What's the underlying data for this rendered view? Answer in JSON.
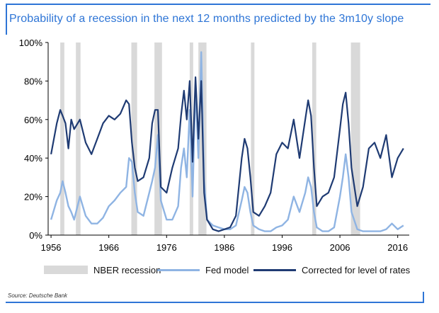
{
  "title": "Probability of a recession in the next 12 months predicted by the 3m10y slope",
  "source": "Source: Deutsche Bank",
  "colors": {
    "accent": "#2e75d6",
    "recession": "#d9d9d9",
    "fed": "#8fb4e3",
    "corrected": "#1f3b73"
  },
  "legend": {
    "recession": "NBER recession",
    "fed": "Fed model",
    "corrected": "Corrected for level of rates"
  },
  "chart_data": {
    "type": "line",
    "xlim": [
      1955.5,
      2018
    ],
    "ylim": [
      0,
      100
    ],
    "x_ticks": [
      1956,
      1966,
      1976,
      1986,
      1996,
      2006,
      2016
    ],
    "x_tick_labels": [
      "1956",
      "1966",
      "1976",
      "1986",
      "1996",
      "2006",
      "2016"
    ],
    "y_ticks": [
      0,
      20,
      40,
      60,
      80,
      100
    ],
    "y_tick_labels": [
      "0%",
      "20%",
      "40%",
      "60%",
      "80%",
      "100%"
    ],
    "recessions": [
      [
        1957.6,
        1958.3
      ],
      [
        1960.3,
        1961.1
      ],
      [
        1969.9,
        1970.9
      ],
      [
        1973.9,
        1975.2
      ],
      [
        1980.0,
        1980.6
      ],
      [
        1981.5,
        1982.9
      ],
      [
        1990.6,
        1991.2
      ],
      [
        2001.2,
        2001.9
      ],
      [
        2007.9,
        2009.5
      ]
    ],
    "series": [
      {
        "name": "Fed model",
        "x": [
          1956,
          1957,
          1957.6,
          1958,
          1958.5,
          1959,
          1959.5,
          1960,
          1961,
          1962,
          1963,
          1964,
          1965,
          1966,
          1967,
          1968,
          1969,
          1969.5,
          1970,
          1970.5,
          1971,
          1972,
          1973,
          1973.5,
          1974,
          1974.5,
          1975,
          1976,
          1977,
          1978,
          1978.5,
          1979,
          1979.5,
          1980,
          1980.5,
          1981,
          1981.5,
          1982,
          1982.5,
          1983,
          1984,
          1985,
          1986,
          1987,
          1988,
          1989,
          1989.5,
          1990,
          1990.5,
          1991,
          1992,
          1993,
          1994,
          1995,
          1996,
          1997,
          1998,
          1999,
          2000,
          2000.5,
          2001,
          2001.5,
          2002,
          2003,
          2004,
          2005,
          2006,
          2006.5,
          2007,
          2007.5,
          2008,
          2009,
          2010,
          2011,
          2012,
          2013,
          2014,
          2015,
          2016,
          2017
        ],
        "values": [
          8,
          18,
          22,
          28,
          22,
          15,
          12,
          8,
          20,
          10,
          6,
          6,
          9,
          15,
          18,
          22,
          25,
          40,
          38,
          22,
          12,
          10,
          22,
          28,
          35,
          52,
          18,
          8,
          8,
          15,
          35,
          45,
          30,
          65,
          20,
          78,
          40,
          95,
          28,
          8,
          5,
          4,
          3,
          3,
          5,
          18,
          25,
          22,
          12,
          5,
          3,
          2,
          2,
          4,
          5,
          8,
          20,
          12,
          22,
          30,
          25,
          12,
          4,
          2,
          2,
          4,
          20,
          30,
          42,
          30,
          12,
          3,
          2,
          2,
          2,
          2,
          3,
          6,
          3,
          5
        ]
      },
      {
        "name": "Corrected for level of rates",
        "x": [
          1956,
          1957,
          1957.6,
          1958,
          1958.5,
          1959,
          1959.5,
          1960,
          1961,
          1962,
          1963,
          1964,
          1965,
          1966,
          1967,
          1968,
          1969,
          1969.5,
          1970,
          1970.5,
          1971,
          1972,
          1973,
          1973.5,
          1974,
          1974.5,
          1975,
          1976,
          1977,
          1978,
          1978.5,
          1979,
          1979.5,
          1980,
          1980.5,
          1981,
          1981.5,
          1982,
          1982.5,
          1983,
          1984,
          1985,
          1986,
          1987,
          1988,
          1989,
          1989.5,
          1990,
          1990.5,
          1991,
          1992,
          1993,
          1994,
          1995,
          1996,
          1997,
          1998,
          1999,
          2000,
          2000.5,
          2001,
          2001.5,
          2002,
          2003,
          2004,
          2005,
          2006,
          2006.5,
          2007,
          2007.5,
          2008,
          2009,
          2010,
          2011,
          2012,
          2013,
          2014,
          2015,
          2016,
          2017
        ],
        "values": [
          42,
          58,
          65,
          62,
          58,
          45,
          60,
          55,
          60,
          48,
          42,
          50,
          58,
          62,
          60,
          63,
          70,
          68,
          48,
          35,
          28,
          30,
          40,
          58,
          65,
          65,
          25,
          22,
          35,
          45,
          62,
          75,
          60,
          80,
          38,
          82,
          50,
          80,
          22,
          8,
          3,
          2,
          3,
          4,
          10,
          40,
          50,
          45,
          30,
          12,
          10,
          15,
          22,
          42,
          48,
          45,
          60,
          40,
          60,
          70,
          62,
          35,
          15,
          20,
          22,
          30,
          55,
          68,
          74,
          58,
          35,
          15,
          25,
          45,
          48,
          40,
          52,
          30,
          40,
          45
        ]
      }
    ]
  }
}
